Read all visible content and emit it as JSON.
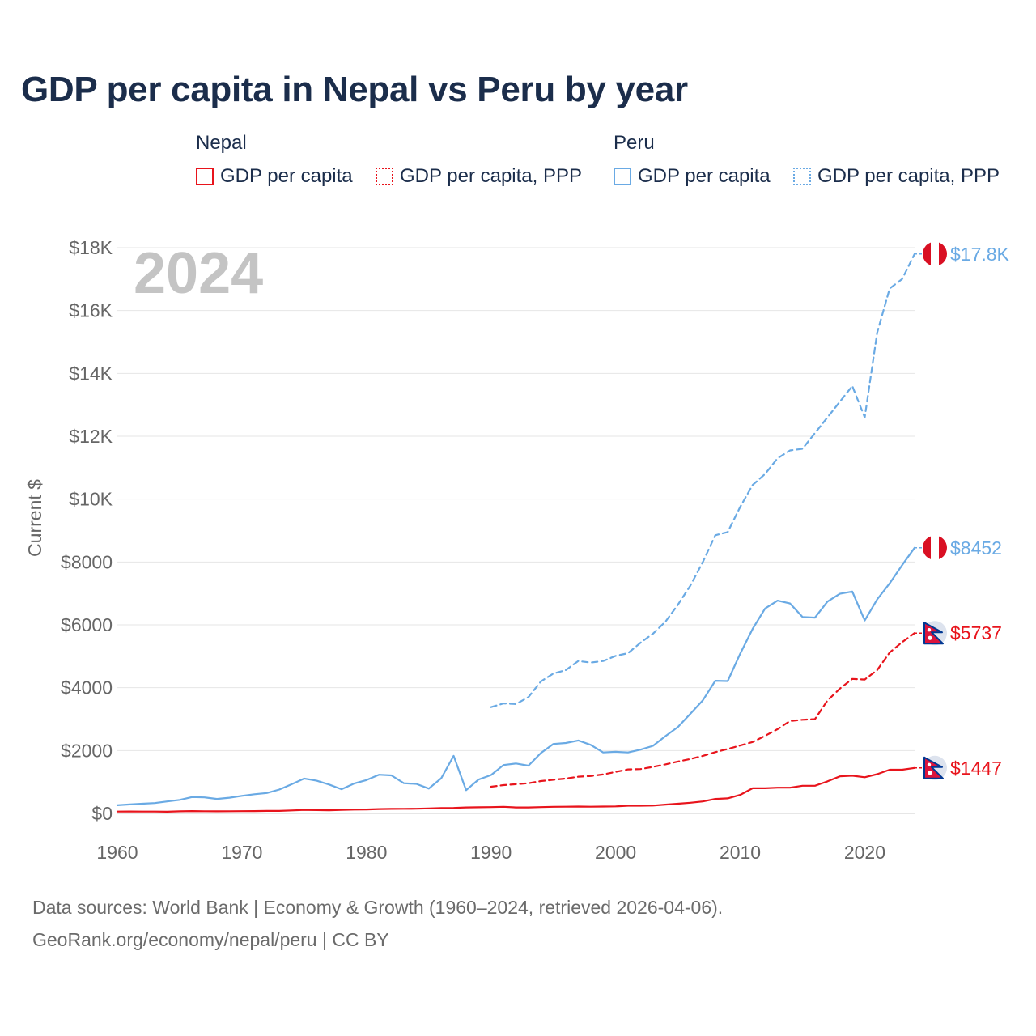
{
  "title": "GDP per capita in Nepal vs Peru by year",
  "legend": {
    "groups": [
      {
        "name": "Nepal",
        "items": [
          {
            "label": "GDP per capita",
            "style": "solid",
            "color": "#e8141c"
          },
          {
            "label": "GDP per capita, PPP",
            "style": "dotted",
            "color": "#e8141c"
          }
        ]
      },
      {
        "name": "Peru",
        "items": [
          {
            "label": "GDP per capita",
            "style": "solid",
            "color": "#6aaae4"
          },
          {
            "label": "GDP per capita, PPP",
            "style": "dotted",
            "color": "#6aaae4"
          }
        ]
      }
    ]
  },
  "footer": {
    "line1": "Data sources: World Bank | Economy & Growth (1960–2024, retrieved 2026-04-06).",
    "line2": "GeoRank.org/economy/nepal/peru | CC BY"
  },
  "chart_data": {
    "type": "line",
    "title": "GDP per capita in Nepal vs Peru by year",
    "year_label": "2024",
    "ylabel": "Current $",
    "xlabel": "",
    "xlim": [
      1960,
      2024
    ],
    "ylim": [
      0,
      18000
    ],
    "xticks": [
      1960,
      1970,
      1980,
      1990,
      2000,
      2010,
      2020
    ],
    "xtick_labels": [
      "1960",
      "1970",
      "1980",
      "1990",
      "2000",
      "2010",
      "2020"
    ],
    "yticks": [
      0,
      2000,
      4000,
      6000,
      8000,
      10000,
      12000,
      14000,
      16000,
      18000
    ],
    "ytick_labels": [
      "$0",
      "$2000",
      "$4000",
      "$6000",
      "$8000",
      "$10K",
      "$12K",
      "$14K",
      "$16K",
      "$18K"
    ],
    "grid": true,
    "series": [
      {
        "name": "Peru GDP per capita PPP",
        "country": "Peru",
        "indicator": "GDP per capita, PPP",
        "color": "#6aaae4",
        "dash": true,
        "end_label": "$17.8K",
        "flag": "peru",
        "x": [
          1990,
          1991,
          1992,
          1993,
          1994,
          1995,
          1996,
          1997,
          1998,
          1999,
          2000,
          2001,
          2002,
          2003,
          2004,
          2005,
          2006,
          2007,
          2008,
          2009,
          2010,
          2011,
          2012,
          2013,
          2014,
          2015,
          2016,
          2017,
          2018,
          2019,
          2020,
          2021,
          2022,
          2023,
          2024
        ],
        "y": [
          3380,
          3500,
          3480,
          3700,
          4200,
          4450,
          4560,
          4850,
          4800,
          4850,
          5010,
          5100,
          5430,
          5720,
          6100,
          6640,
          7250,
          8000,
          8850,
          8950,
          9750,
          10450,
          10800,
          11300,
          11550,
          11600,
          12100,
          12600,
          13100,
          13600,
          12600,
          15300,
          16700,
          17000,
          17800
        ]
      },
      {
        "name": "Peru GDP per capita",
        "country": "Peru",
        "indicator": "GDP per capita",
        "color": "#6aaae4",
        "dash": false,
        "end_label": "$8452",
        "flag": "peru",
        "x": [
          1960,
          1961,
          1962,
          1963,
          1964,
          1965,
          1966,
          1967,
          1968,
          1969,
          1970,
          1971,
          1972,
          1973,
          1974,
          1975,
          1976,
          1977,
          1978,
          1979,
          1980,
          1981,
          1982,
          1983,
          1984,
          1985,
          1986,
          1987,
          1988,
          1989,
          1990,
          1991,
          1992,
          1993,
          1994,
          1995,
          1996,
          1997,
          1998,
          1999,
          2000,
          2001,
          2002,
          2003,
          2004,
          2005,
          2006,
          2007,
          2008,
          2009,
          2010,
          2011,
          2012,
          2013,
          2014,
          2015,
          2016,
          2017,
          2018,
          2019,
          2020,
          2021,
          2022,
          2023,
          2024
        ],
        "y": [
          260,
          285,
          310,
          330,
          380,
          430,
          520,
          510,
          460,
          500,
          560,
          610,
          650,
          760,
          930,
          1110,
          1040,
          920,
          770,
          950,
          1060,
          1230,
          1210,
          960,
          940,
          790,
          1120,
          1830,
          740,
          1080,
          1220,
          1540,
          1590,
          1520,
          1920,
          2210,
          2240,
          2320,
          2180,
          1940,
          1960,
          1940,
          2030,
          2150,
          2460,
          2750,
          3170,
          3600,
          4220,
          4210,
          5080,
          5870,
          6520,
          6770,
          6680,
          6250,
          6230,
          6740,
          6990,
          7060,
          6140,
          6810,
          7320,
          7900,
          8452
        ]
      },
      {
        "name": "Nepal GDP per capita PPP",
        "country": "Nepal",
        "indicator": "GDP per capita, PPP",
        "color": "#e8141c",
        "dash": true,
        "end_label": "$5737",
        "flag": "nepal",
        "x": [
          1990,
          1991,
          1992,
          1993,
          1994,
          1995,
          1996,
          1997,
          1998,
          1999,
          2000,
          2001,
          2002,
          2003,
          2004,
          2005,
          2006,
          2007,
          2008,
          2009,
          2010,
          2011,
          2012,
          2013,
          2014,
          2015,
          2016,
          2017,
          2018,
          2019,
          2020,
          2021,
          2022,
          2023,
          2024
        ],
        "y": [
          850,
          900,
          930,
          960,
          1030,
          1070,
          1110,
          1170,
          1190,
          1240,
          1320,
          1400,
          1410,
          1480,
          1560,
          1650,
          1730,
          1830,
          1950,
          2050,
          2160,
          2270,
          2470,
          2680,
          2940,
          2980,
          3000,
          3590,
          3970,
          4280,
          4260,
          4560,
          5120,
          5450,
          5737
        ]
      },
      {
        "name": "Nepal GDP per capita",
        "country": "Nepal",
        "indicator": "GDP per capita",
        "color": "#e8141c",
        "dash": false,
        "end_label": "$1447",
        "flag": "nepal",
        "x": [
          1960,
          1961,
          1962,
          1963,
          1964,
          1965,
          1966,
          1967,
          1968,
          1969,
          1970,
          1971,
          1972,
          1973,
          1974,
          1975,
          1976,
          1977,
          1978,
          1979,
          1980,
          1981,
          1982,
          1983,
          1984,
          1985,
          1986,
          1987,
          1988,
          1989,
          1990,
          1991,
          1992,
          1993,
          1994,
          1995,
          1996,
          1997,
          1998,
          1999,
          2000,
          2001,
          2002,
          2003,
          2004,
          2005,
          2006,
          2007,
          2008,
          2009,
          2010,
          2011,
          2012,
          2013,
          2014,
          2015,
          2016,
          2017,
          2018,
          2019,
          2020,
          2021,
          2022,
          2023,
          2024
        ],
        "y": [
          60,
          62,
          60,
          58,
          55,
          68,
          75,
          70,
          68,
          70,
          72,
          74,
          80,
          80,
          95,
          110,
          105,
          100,
          110,
          120,
          125,
          140,
          145,
          148,
          150,
          160,
          170,
          175,
          190,
          195,
          200,
          210,
          190,
          190,
          200,
          210,
          215,
          220,
          215,
          220,
          225,
          245,
          245,
          250,
          280,
          310,
          340,
          380,
          460,
          480,
          590,
          800,
          800,
          820,
          820,
          880,
          880,
          1020,
          1180,
          1200,
          1150,
          1250,
          1390,
          1390,
          1447
        ]
      }
    ]
  }
}
